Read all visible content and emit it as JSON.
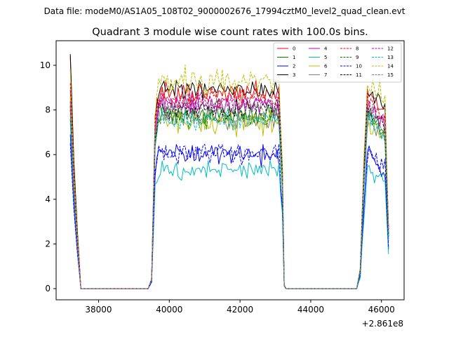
{
  "suptitle": "Data file: modeM0/AS1A05_108T02_9000002676_17994cztM0_level2_quad_clean.evt",
  "chart_data": {
    "type": "line",
    "title": "Quadrant 3 module wise count rates with 100.0s bins.",
    "xlabel": "",
    "ylabel": "",
    "x_offset_label": "+2.861e8",
    "xlim": [
      36800,
      46640
    ],
    "ylim": [
      -0.5,
      11.1
    ],
    "xticks": [
      38000,
      40000,
      42000,
      44000,
      46000
    ],
    "xtick_labels": [
      "38000",
      "40000",
      "42000",
      "44000",
      "46000"
    ],
    "yticks": [
      0,
      2,
      4,
      6,
      8,
      10
    ],
    "ytick_labels": [
      "0",
      "2",
      "4",
      "6",
      "8",
      "10"
    ],
    "grid": false,
    "legend": {
      "placement": "top-right",
      "columns": 4
    },
    "segments": [
      {
        "start": 37200,
        "end": 37500,
        "step": 50
      },
      {
        "start": 37500,
        "end": 39500,
        "step": 100
      },
      {
        "start": 39500,
        "end": 43300,
        "step": 50
      },
      {
        "start": 43300,
        "end": 45200,
        "step": 100
      },
      {
        "start": 45200,
        "end": 46200,
        "step": 50
      }
    ],
    "profile": [
      {
        "x": 37200,
        "f": 1.0
      },
      {
        "x": 37300,
        "f": 0.55
      },
      {
        "x": 37400,
        "f": 0.25
      },
      {
        "x": 37500,
        "f": 0.0
      },
      {
        "x": 39450,
        "f": 0.0
      },
      {
        "x": 39500,
        "f": 0.05
      },
      {
        "x": 39600,
        "f": 0.85
      },
      {
        "x": 39700,
        "f": 1.0
      },
      {
        "x": 43100,
        "f": 1.0
      },
      {
        "x": 43200,
        "f": 0.6
      },
      {
        "x": 43250,
        "f": 0.02
      },
      {
        "x": 43300,
        "f": 0.0
      },
      {
        "x": 45300,
        "f": 0.0
      },
      {
        "x": 45400,
        "f": 0.1
      },
      {
        "x": 45500,
        "f": 0.6
      },
      {
        "x": 45600,
        "f": 1.0
      },
      {
        "x": 46100,
        "f": 0.9
      },
      {
        "x": 46200,
        "f": 0.3
      }
    ],
    "series": [
      {
        "name": "0",
        "color": "#ff0000",
        "dash": "solid",
        "start": 10.4,
        "level": 8.7,
        "noise": 0.22
      },
      {
        "name": "1",
        "color": "#008000",
        "dash": "solid",
        "start": 7.6,
        "level": 7.8,
        "noise": 0.22
      },
      {
        "name": "2",
        "color": "#0000ff",
        "dash": "solid",
        "start": 6.9,
        "level": 6.0,
        "noise": 0.22
      },
      {
        "name": "3",
        "color": "#000000",
        "dash": "solid",
        "start": 10.5,
        "level": 8.9,
        "noise": 0.22
      },
      {
        "name": "4",
        "color": "#bf00bf",
        "dash": "solid",
        "start": 8.9,
        "level": 8.2,
        "noise": 0.22
      },
      {
        "name": "5",
        "color": "#00bfbf",
        "dash": "solid",
        "start": 7.4,
        "level": 5.3,
        "noise": 0.2
      },
      {
        "name": "6",
        "color": "#bfbf00",
        "dash": "solid",
        "start": 8.6,
        "level": 7.4,
        "noise": 0.3
      },
      {
        "name": "7",
        "color": "#808080",
        "dash": "solid",
        "start": 8.1,
        "level": 7.6,
        "noise": 0.22
      },
      {
        "name": "8",
        "color": "#ff0000",
        "dash": "dashed",
        "start": 9.2,
        "level": 8.5,
        "noise": 0.22
      },
      {
        "name": "9",
        "color": "#008000",
        "dash": "dashed",
        "start": 8.0,
        "level": 7.7,
        "noise": 0.22
      },
      {
        "name": "10",
        "color": "#0000ff",
        "dash": "dashed",
        "start": 6.5,
        "level": 6.1,
        "noise": 0.25
      },
      {
        "name": "11",
        "color": "#000000",
        "dash": "dashed",
        "start": 8.2,
        "level": 8.0,
        "noise": 0.22
      },
      {
        "name": "12",
        "color": "#bf00bf",
        "dash": "dashed",
        "start": 8.4,
        "level": 8.3,
        "noise": 0.22
      },
      {
        "name": "13",
        "color": "#00bfbf",
        "dash": "dashed",
        "start": 7.8,
        "level": 7.5,
        "noise": 0.22
      },
      {
        "name": "14",
        "color": "#bfbf00",
        "dash": "dashed",
        "start": 9.8,
        "level": 9.3,
        "noise": 0.3
      },
      {
        "name": "15",
        "color": "#808080",
        "dash": "dashed",
        "start": 8.3,
        "level": 8.1,
        "noise": 0.22
      }
    ]
  }
}
